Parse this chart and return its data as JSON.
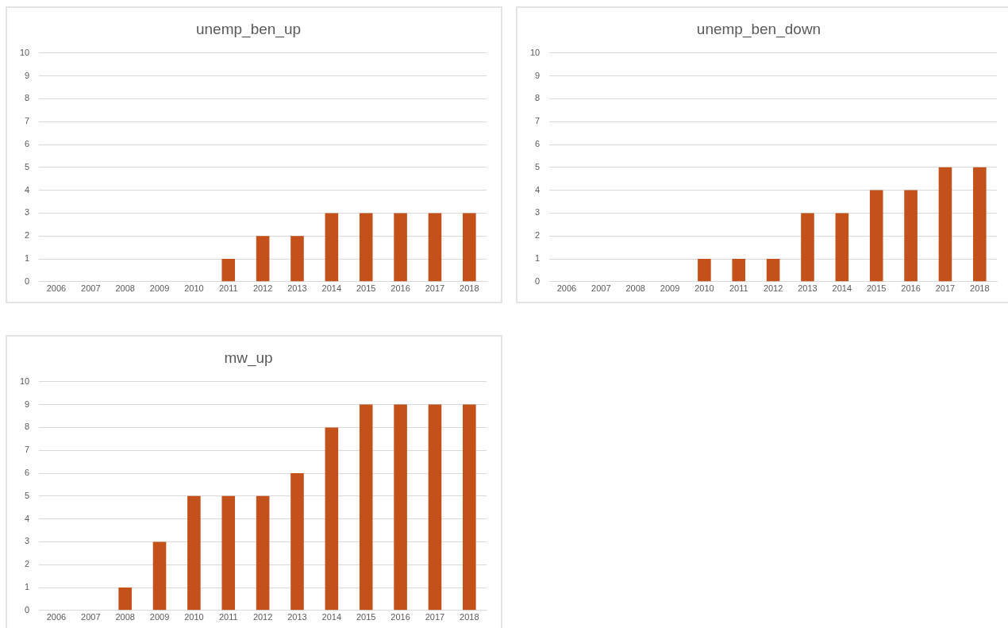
{
  "chart_data": [
    {
      "type": "bar",
      "title": "unemp_ben_up",
      "categories": [
        "2006",
        "2007",
        "2008",
        "2009",
        "2010",
        "2011",
        "2012",
        "2013",
        "2014",
        "2015",
        "2016",
        "2017",
        "2018"
      ],
      "values": [
        0,
        0,
        0,
        0,
        0,
        1,
        2,
        2,
        3,
        3,
        3,
        3,
        3
      ],
      "color": "#c4501a",
      "ylim": [
        0,
        10
      ],
      "yticks": [
        0,
        1,
        2,
        3,
        4,
        5,
        6,
        7,
        8,
        9,
        10
      ],
      "grid": "y",
      "legend": false
    },
    {
      "type": "bar",
      "title": "unemp_ben_down",
      "categories": [
        "2006",
        "2007",
        "2008",
        "2009",
        "2010",
        "2011",
        "2012",
        "2013",
        "2014",
        "2015",
        "2016",
        "2017",
        "2018"
      ],
      "values": [
        0,
        0,
        0,
        0,
        1,
        1,
        1,
        3,
        3,
        4,
        4,
        5,
        5
      ],
      "color": "#c4501a",
      "ylim": [
        0,
        10
      ],
      "yticks": [
        0,
        1,
        2,
        3,
        4,
        5,
        6,
        7,
        8,
        9,
        10
      ],
      "grid": "y",
      "legend": false
    },
    {
      "type": "bar",
      "title": "mw_up",
      "categories": [
        "2006",
        "2007",
        "2008",
        "2009",
        "2010",
        "2011",
        "2012",
        "2013",
        "2014",
        "2015",
        "2016",
        "2017",
        "2018"
      ],
      "values": [
        0,
        0,
        1,
        3,
        5,
        5,
        5,
        6,
        8,
        9,
        9,
        9,
        9
      ],
      "color": "#c4501a",
      "ylim": [
        0,
        10
      ],
      "yticks": [
        0,
        1,
        2,
        3,
        4,
        5,
        6,
        7,
        8,
        9,
        10
      ],
      "grid": "y",
      "legend": false
    }
  ]
}
